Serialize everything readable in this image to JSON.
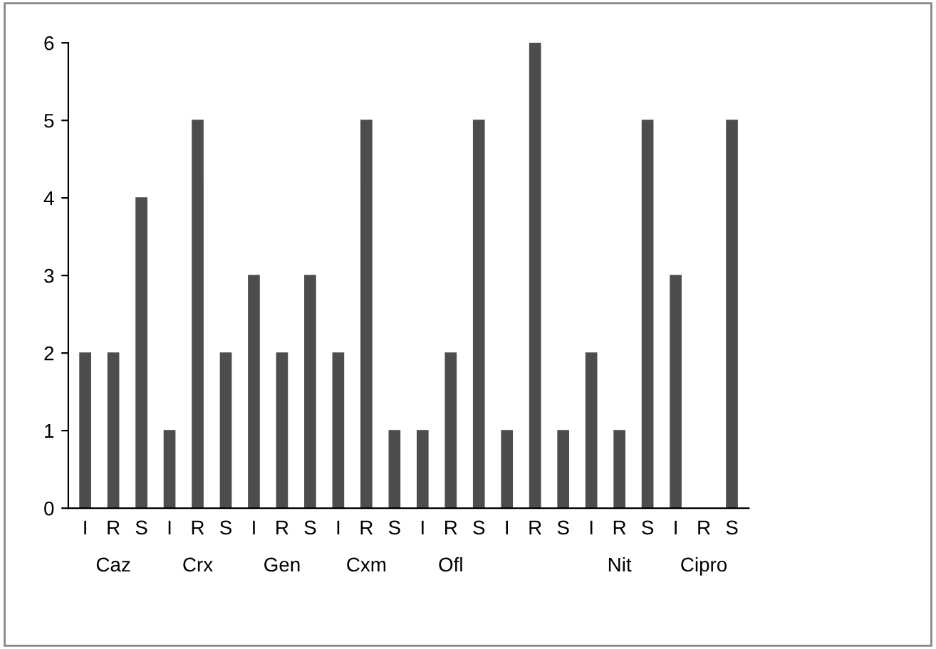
{
  "chart_data": {
    "type": "bar",
    "categories": [
      "I",
      "R",
      "S",
      "I",
      "R",
      "S",
      "I",
      "R",
      "S",
      "I",
      "R",
      "S",
      "I",
      "R",
      "S",
      "I",
      "R",
      "S",
      "I",
      "R",
      "S",
      "I",
      "R",
      "S"
    ],
    "values": [
      2,
      2,
      4,
      1,
      5,
      2,
      3,
      2,
      3,
      2,
      5,
      1,
      1,
      2,
      5,
      1,
      6,
      1,
      2,
      1,
      5,
      3,
      0,
      5
    ],
    "color": "#4d4d4d",
    "annotations": [
      "Caz",
      "Crx",
      "Gen",
      "Cxm",
      "Ofl",
      null,
      "Nit",
      "Cipro"
    ],
    "ylim": [
      0,
      6
    ],
    "yticks": [
      0,
      1,
      2,
      3,
      4,
      5,
      6
    ],
    "grid": false,
    "legend": false
  }
}
